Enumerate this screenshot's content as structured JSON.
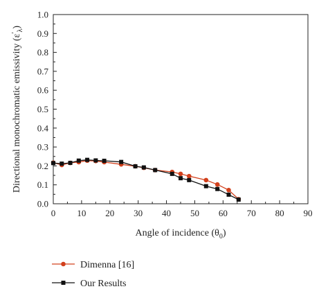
{
  "chart_data": {
    "type": "line",
    "title": "",
    "xlabel": {
      "base": "Angle of incidence (θ",
      "sub": "0",
      "close": ")"
    },
    "ylabel": {
      "base": "Directional monochromatic emissivity (ε",
      "sub": "λ",
      "prime": "′",
      "close": ")"
    },
    "xlim": [
      0,
      90
    ],
    "ylim": [
      0.0,
      1.0
    ],
    "x_ticks": [
      0,
      10,
      20,
      30,
      40,
      50,
      60,
      70,
      80,
      90
    ],
    "y_ticks": [
      "0.0",
      "0.1",
      "0.2",
      "0.3",
      "0.4",
      "0.5",
      "0.6",
      "0.7",
      "0.8",
      "0.9",
      "1.0"
    ],
    "grid": false,
    "legend_position": "bottom",
    "series": [
      {
        "name": "Dimenna [16]",
        "color": "#d2401c",
        "marker": "circle",
        "x": [
          0,
          3,
          6,
          9,
          12,
          15,
          18,
          24,
          29,
          32,
          36,
          42,
          45,
          48,
          54,
          58,
          62,
          65.5
        ],
        "y": [
          0.217,
          0.205,
          0.216,
          0.22,
          0.228,
          0.226,
          0.22,
          0.208,
          0.198,
          0.19,
          0.178,
          0.168,
          0.158,
          0.146,
          0.125,
          0.102,
          0.072,
          0.024
        ]
      },
      {
        "name": "Our Results",
        "color": "#111111",
        "marker": "square",
        "x": [
          0,
          3,
          6,
          9,
          12,
          15,
          18,
          24,
          29,
          32,
          36,
          42,
          45,
          48,
          54,
          58,
          62,
          65.5
        ],
        "y": [
          0.215,
          0.212,
          0.216,
          0.228,
          0.232,
          0.229,
          0.227,
          0.221,
          0.198,
          0.192,
          0.178,
          0.158,
          0.135,
          0.125,
          0.093,
          0.078,
          0.048,
          0.022
        ]
      }
    ]
  }
}
